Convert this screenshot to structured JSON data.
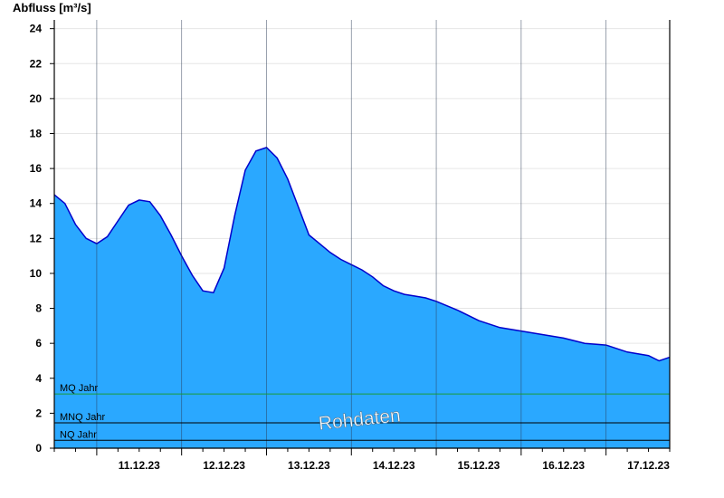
{
  "chart_data": {
    "type": "area",
    "title": "",
    "ylabel": "Abfluss [m³/s]",
    "xlabel": "",
    "ylim": [
      0,
      24.5
    ],
    "yticks": [
      0,
      2,
      4,
      6,
      8,
      10,
      12,
      14,
      16,
      18,
      20,
      22,
      24
    ],
    "x_range": [
      "2023-12-10T12:00",
      "2023-12-17T18:00"
    ],
    "day_ticks": [
      "11.12.23",
      "12.12.23",
      "13.12.23",
      "14.12.23",
      "15.12.23",
      "16.12.23",
      "17.12.23"
    ],
    "grid": true,
    "colors": {
      "fill": "#2aa8ff",
      "line": "#0000cc",
      "mq": "#1a9a3a",
      "ref": "#000000"
    },
    "series": [
      {
        "x": [
          "2023-12-10T12:00",
          "2023-12-10T15:00",
          "2023-12-10T18:00",
          "2023-12-10T21:00",
          "2023-12-11T00:00",
          "2023-12-11T03:00",
          "2023-12-11T06:00",
          "2023-12-11T09:00",
          "2023-12-11T12:00",
          "2023-12-11T15:00",
          "2023-12-11T18:00",
          "2023-12-11T21:00",
          "2023-12-12T00:00",
          "2023-12-12T03:00",
          "2023-12-12T06:00",
          "2023-12-12T09:00",
          "2023-12-12T12:00",
          "2023-12-12T15:00",
          "2023-12-12T18:00",
          "2023-12-12T21:00",
          "2023-12-13T00:00",
          "2023-12-13T03:00",
          "2023-12-13T06:00",
          "2023-12-13T09:00",
          "2023-12-13T12:00",
          "2023-12-13T15:00",
          "2023-12-13T18:00",
          "2023-12-13T21:00",
          "2023-12-14T00:00",
          "2023-12-14T03:00",
          "2023-12-14T06:00",
          "2023-12-14T09:00",
          "2023-12-14T12:00",
          "2023-12-14T15:00",
          "2023-12-14T18:00",
          "2023-12-14T21:00",
          "2023-12-15T00:00",
          "2023-12-15T06:00",
          "2023-12-15T12:00",
          "2023-12-15T18:00",
          "2023-12-16T00:00",
          "2023-12-16T06:00",
          "2023-12-16T12:00",
          "2023-12-16T18:00",
          "2023-12-17T00:00",
          "2023-12-17T06:00",
          "2023-12-17T12:00",
          "2023-12-17T15:00",
          "2023-12-17T18:00"
        ],
        "values": [
          14.5,
          14.0,
          12.8,
          12.0,
          11.7,
          12.1,
          13.0,
          13.9,
          14.2,
          14.1,
          13.3,
          12.2,
          11.0,
          9.9,
          9.0,
          8.9,
          10.3,
          13.3,
          15.9,
          17.0,
          17.2,
          16.6,
          15.4,
          13.8,
          12.2,
          11.7,
          11.2,
          10.8,
          10.5,
          10.2,
          9.8,
          9.3,
          9.0,
          8.8,
          8.7,
          8.6,
          8.4,
          7.9,
          7.3,
          6.9,
          6.7,
          6.5,
          6.3,
          6.0,
          5.9,
          5.5,
          5.3,
          5.0,
          5.2
        ]
      }
    ],
    "reference_lines": [
      {
        "name": "MQ Jahr",
        "value": 3.1
      },
      {
        "name": "MNQ Jahr",
        "value": 1.45
      },
      {
        "name": "NQ Jahr",
        "value": 0.45
      }
    ],
    "watermark": "Rohdaten"
  }
}
